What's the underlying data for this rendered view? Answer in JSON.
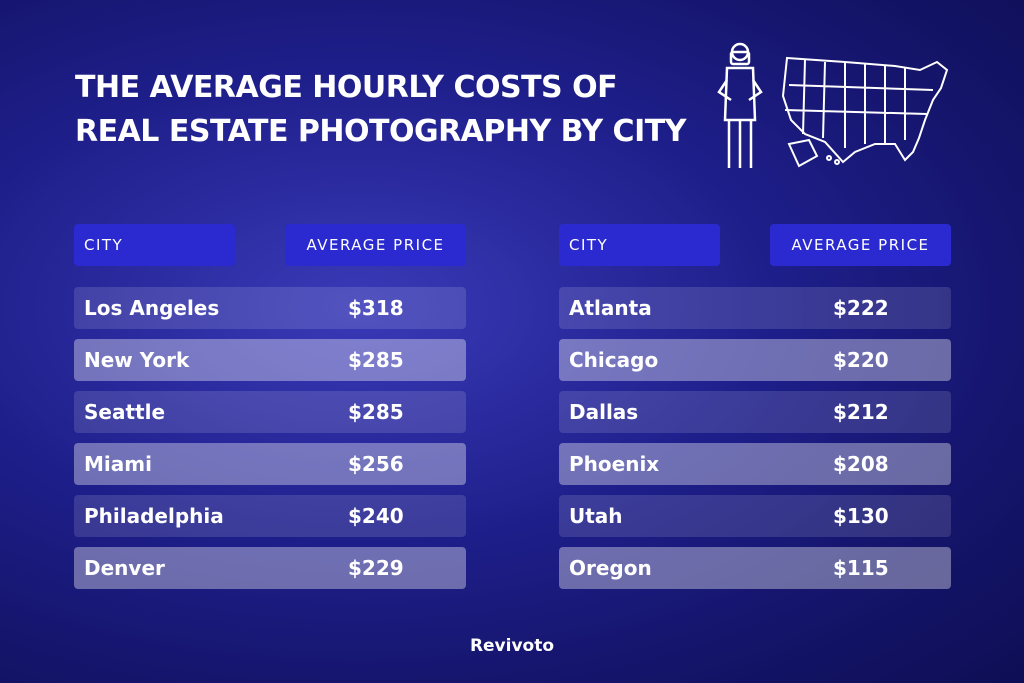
{
  "header": {
    "title_lines": [
      "THE AVERAGE HOURLY COSTS OF",
      "REAL ESTATE PHOTOGRAPHY BY CITY"
    ]
  },
  "tables": [
    {
      "headers": [
        "CITY",
        "AVERAGE PRICE"
      ],
      "rows": [
        [
          "Los Angeles",
          "$318"
        ],
        [
          "New York",
          "$285"
        ],
        [
          "Seattle",
          "$285"
        ],
        [
          "Miami",
          "$256"
        ],
        [
          "Philadelphia",
          "$240"
        ],
        [
          "Denver",
          "$229"
        ]
      ]
    },
    {
      "headers": [
        "CITY",
        "AVERAGE PRICE"
      ],
      "rows": [
        [
          "Atlanta",
          "$222"
        ],
        [
          "Chicago",
          "$220"
        ],
        [
          "Dallas",
          "$212"
        ],
        [
          "Phoenix",
          "$208"
        ],
        [
          "Utah",
          "$130"
        ],
        [
          "Oregon",
          "$115"
        ]
      ]
    }
  ],
  "footer": {
    "brand": "Revivoto"
  }
}
